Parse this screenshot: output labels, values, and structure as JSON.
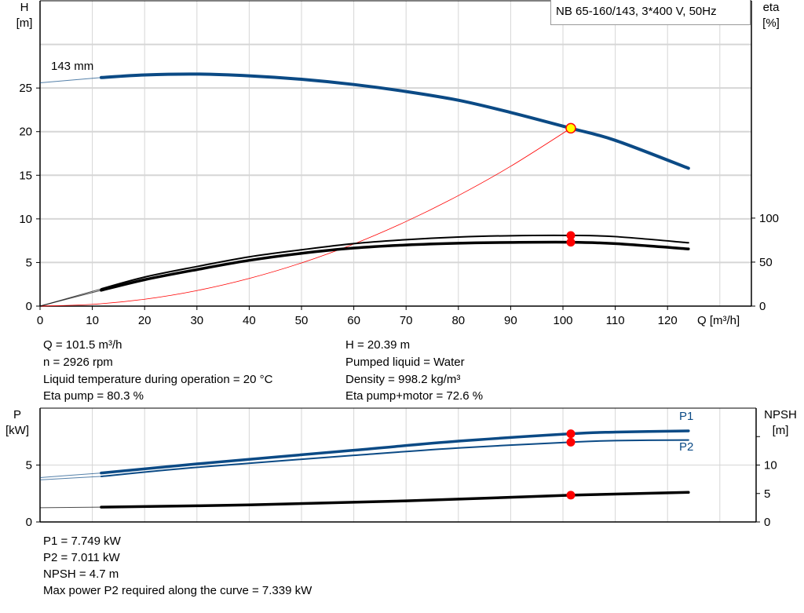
{
  "chart_data": [
    {
      "type": "line",
      "title": "NB 65-160/143, 3*400 V, 50Hz",
      "xlabel": "Q [m³/h]",
      "ylabel_left": [
        "H",
        "[m]"
      ],
      "ylabel_right": [
        "eta",
        "[%]"
      ],
      "xlim": [
        0,
        136
      ],
      "ylim_left": [
        0,
        35
      ],
      "ylim_right": [
        0,
        347
      ],
      "x_ticks": [
        0,
        10,
        20,
        30,
        40,
        50,
        60,
        70,
        80,
        90,
        100,
        110,
        120
      ],
      "y_ticks_left": [
        0,
        5,
        10,
        15,
        20,
        25
      ],
      "y_ticks_right": [
        0,
        50,
        100
      ],
      "grid": true,
      "curve_label": "143 mm",
      "series": [
        {
          "key": "H",
          "axis": "left",
          "color": "#0b4a85",
          "x": [
            0,
            11.7,
            20,
            30,
            40,
            50,
            60,
            70,
            80,
            90,
            101.5,
            110,
            124
          ],
          "y": [
            25.6,
            26.2,
            26.5,
            26.6,
            26.4,
            26.0,
            25.4,
            24.6,
            23.6,
            22.2,
            20.39,
            19.0,
            15.8
          ]
        },
        {
          "key": "system",
          "axis": "left",
          "color": "#ff0000",
          "x": [
            0,
            10,
            20,
            30,
            40,
            50,
            60,
            70,
            80,
            90,
            101.5
          ],
          "y": [
            0,
            0.2,
            0.79,
            1.78,
            3.17,
            4.95,
            7.12,
            9.7,
            12.67,
            16.03,
            20.39
          ]
        },
        {
          "key": "eta_pump",
          "axis": "right",
          "color": "#000000",
          "x": [
            0,
            11.7,
            20,
            30,
            40,
            50,
            60,
            70,
            80,
            90,
            101.5,
            110,
            124
          ],
          "y": [
            0,
            19.6,
            33,
            45,
            56,
            64,
            71,
            75.5,
            78.5,
            80,
            80.3,
            79,
            72
          ]
        },
        {
          "key": "eta_total",
          "axis": "right",
          "color": "#000000",
          "x": [
            0,
            11.7,
            20,
            30,
            40,
            50,
            60,
            70,
            80,
            90,
            101.5,
            110,
            124
          ],
          "y": [
            0,
            18,
            30,
            41.5,
            52,
            60,
            66,
            69.5,
            71.5,
            72.4,
            72.6,
            71,
            65
          ]
        }
      ],
      "duty_point": {
        "Q": 101.5,
        "H": 20.39,
        "eta_pump": 80.3,
        "eta_total": 72.6,
        "fill": "#ffff00",
        "stroke": "#ff0000"
      }
    },
    {
      "type": "line",
      "ylabel_left": [
        "P",
        "[kW]"
      ],
      "ylabel_right": [
        "NPSH",
        "[m]"
      ],
      "xlim": [
        0,
        136
      ],
      "ylim_left": [
        0,
        10
      ],
      "ylim_right": [
        0,
        20
      ],
      "y_ticks_left": [
        0,
        5
      ],
      "y_ticks_right": [
        0,
        5,
        10,
        15
      ],
      "y_tick_labels_right": [
        "0",
        "5",
        "10",
        ""
      ],
      "grid": true,
      "series": [
        {
          "name": "P1",
          "axis": "left",
          "color": "#0b4a85",
          "x": [
            0,
            11.7,
            30,
            60,
            80,
            101.5,
            110,
            124
          ],
          "y": [
            3.9,
            4.3,
            5.1,
            6.3,
            7.1,
            7.749,
            7.9,
            8.0
          ]
        },
        {
          "name": "P2",
          "axis": "left",
          "color": "#0b4a85",
          "x": [
            0,
            11.7,
            30,
            60,
            80,
            101.5,
            110,
            124
          ],
          "y": [
            3.7,
            4.0,
            4.8,
            5.85,
            6.5,
            7.011,
            7.15,
            7.2
          ]
        },
        {
          "key": "NPSH",
          "axis": "right",
          "color": "#000000",
          "x": [
            0,
            11.7,
            40,
            70,
            101.5,
            124
          ],
          "y": [
            2.5,
            2.6,
            3.0,
            3.7,
            4.7,
            5.2
          ]
        }
      ],
      "duty_Q": 101.5
    }
  ],
  "info_top": {
    "left": [
      "Q = 101.5 m³/h",
      "n = 2926 rpm",
      "Liquid temperature during operation = 20 °C",
      "Eta pump = 80.3 %"
    ],
    "right": [
      "H = 20.39 m",
      "Pumped liquid = Water",
      "Density = 998.2 kg/m³",
      "Eta pump+motor = 72.6 %"
    ]
  },
  "info_bottom": [
    "P1 = 7.749 kW",
    "P2 = 7.011 kW",
    "NPSH = 4.7 m",
    "Max power P2 required along the curve = 7.339 kW"
  ]
}
